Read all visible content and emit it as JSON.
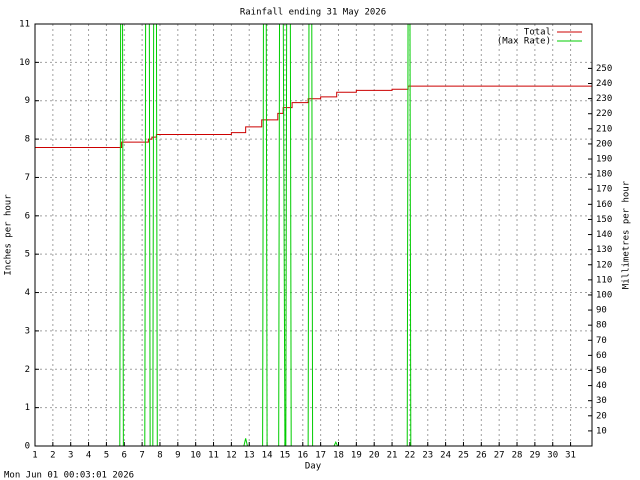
{
  "chart_data": {
    "type": "line",
    "title": "Rainfall ending 31 May 2026",
    "x_label": "Day",
    "y_label": "Inches per hour",
    "y2_label": "Millimetres per hour",
    "footer": "Mon Jun 01 00:03:01 2026",
    "xlim": [
      1,
      32.2
    ],
    "xticks": [
      1,
      2,
      3,
      4,
      5,
      6,
      7,
      8,
      9,
      10,
      11,
      12,
      13,
      14,
      15,
      16,
      17,
      18,
      19,
      20,
      21,
      22,
      23,
      24,
      25,
      26,
      27,
      28,
      29,
      30,
      31
    ],
    "ylim": [
      0,
      11
    ],
    "yticks": [
      0,
      1,
      2,
      3,
      4,
      5,
      6,
      7,
      8,
      9,
      10,
      11
    ],
    "y2lim": [
      0,
      279.4
    ],
    "y2ticks": [
      10,
      20,
      30,
      40,
      50,
      60,
      70,
      80,
      90,
      100,
      110,
      120,
      130,
      140,
      150,
      160,
      170,
      180,
      190,
      200,
      210,
      220,
      230,
      240,
      250
    ],
    "grid": true,
    "legend": "top-right",
    "series": [
      {
        "name": "Total",
        "color": "#cc0000",
        "x": [
          1,
          5.85,
          5.85,
          7.35,
          7.35,
          7.55,
          7.55,
          7.8,
          7.8,
          12.0,
          12.0,
          12.8,
          12.8,
          13.7,
          13.7,
          14.6,
          14.6,
          14.9,
          14.9,
          15.4,
          15.4,
          16.3,
          16.3,
          17.0,
          17.0,
          17.9,
          17.9,
          19.0,
          19.0,
          21.0,
          21.0,
          21.9,
          21.9,
          32.2
        ],
        "values": [
          7.78,
          7.78,
          7.92,
          7.92,
          8.0,
          8.0,
          8.05,
          8.05,
          8.12,
          8.12,
          8.17,
          8.17,
          8.32,
          8.32,
          8.5,
          8.5,
          8.67,
          8.67,
          8.82,
          8.82,
          8.95,
          8.95,
          9.05,
          9.05,
          9.1,
          9.1,
          9.22,
          9.22,
          9.27,
          9.27,
          9.3,
          9.3,
          9.38,
          9.38
        ]
      },
      {
        "name": "(Max Rate)",
        "color": "#00cc00",
        "x": [
          1,
          5.75,
          5.8,
          5.9,
          5.95,
          7.15,
          7.2,
          7.4,
          7.45,
          7.6,
          7.65,
          7.8,
          7.85,
          12.7,
          12.8,
          12.9,
          13.75,
          13.8,
          13.95,
          14.0,
          14.65,
          14.7,
          14.9,
          15.0,
          15.05,
          15.1,
          15.3,
          15.35,
          16.3,
          16.35,
          16.5,
          16.55,
          17.75,
          17.85,
          17.95,
          21.85,
          21.9,
          22.0,
          22.05,
          32.2
        ],
        "values": [
          0,
          0,
          12,
          12,
          0,
          0,
          12,
          12,
          0,
          0,
          12,
          12,
          0,
          0,
          0.2,
          0,
          0,
          12,
          12,
          0,
          0,
          12,
          12,
          0,
          0,
          12,
          12,
          0,
          0,
          12,
          12,
          0,
          0,
          0.1,
          0,
          0,
          12,
          12,
          0,
          0
        ]
      }
    ]
  }
}
